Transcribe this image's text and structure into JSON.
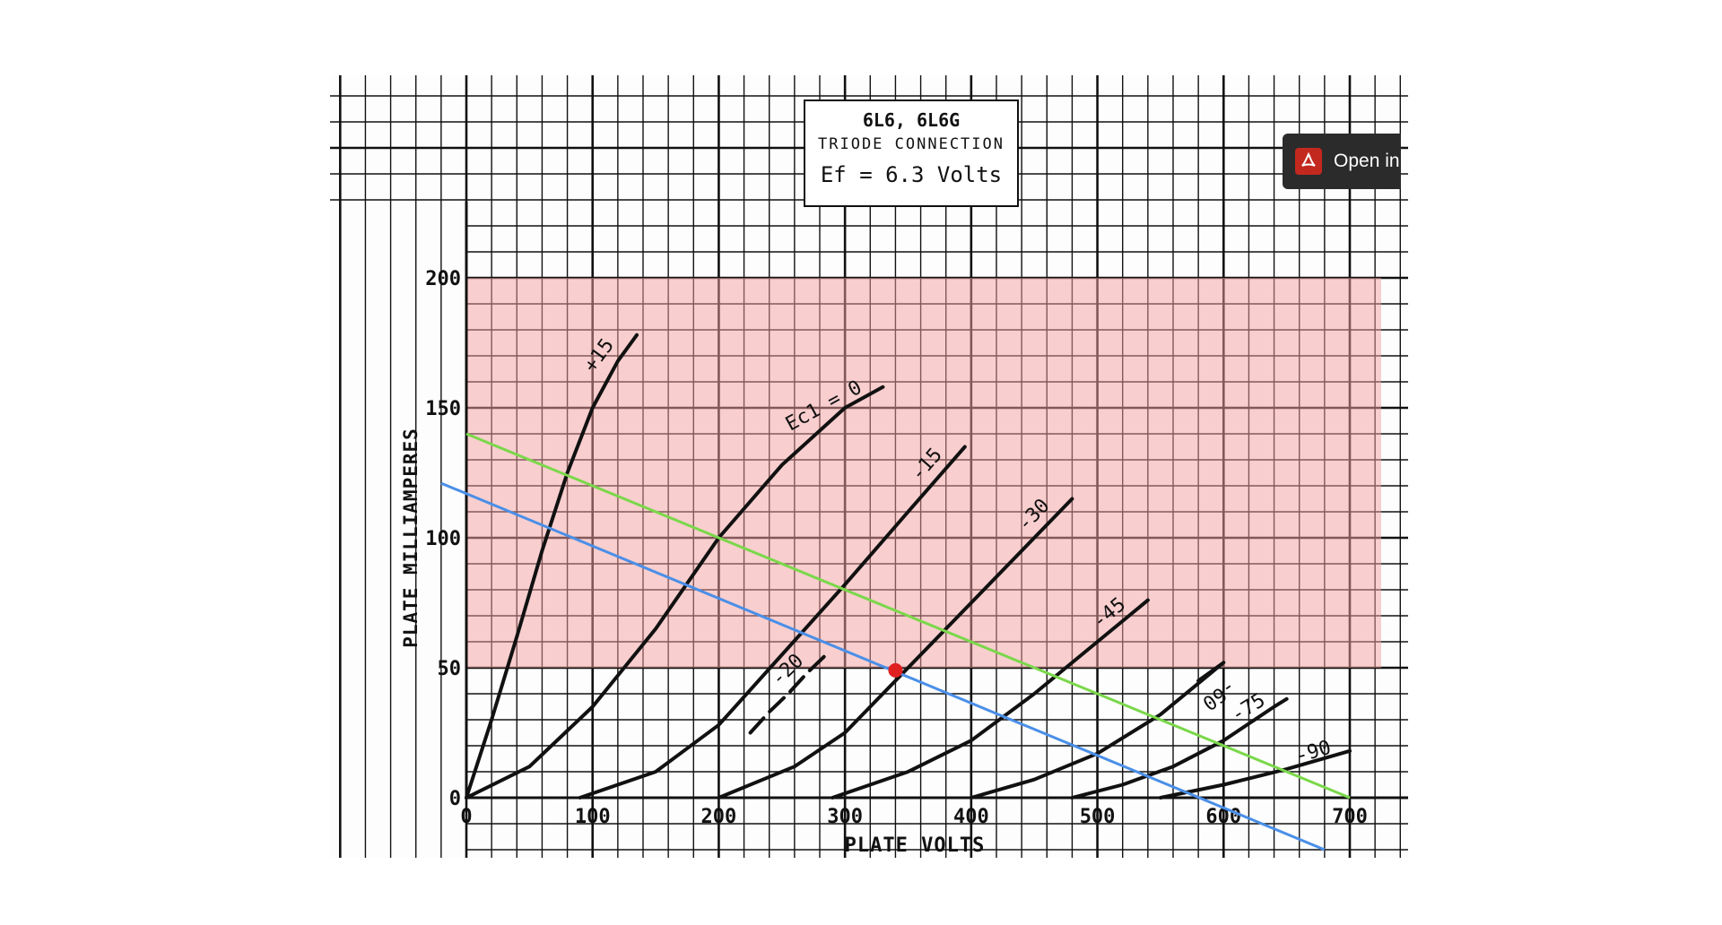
{
  "chart_data": {
    "type": "line",
    "title": "6L6, 6L6G",
    "subtitle": "TRIODE CONNECTION",
    "condition": "Ef = 6.3 Volts",
    "xlabel": "PLATE VOLTS",
    "ylabel": "PLATE MILLIAMPERES",
    "xlim": [
      0,
      700
    ],
    "ylim": [
      0,
      200
    ],
    "x_ticks": [
      "0",
      "100",
      "200",
      "300",
      "400",
      "500",
      "600",
      "700"
    ],
    "y_ticks": [
      "0",
      "50",
      "100",
      "150",
      "200"
    ],
    "grid": true,
    "curve_label_prefix": "Ec1 = ",
    "series": [
      {
        "name": "+15",
        "x": [
          0,
          20,
          40,
          60,
          80,
          100,
          120,
          135
        ],
        "y": [
          0,
          30,
          62,
          95,
          125,
          150,
          168,
          178
        ]
      },
      {
        "name": "0",
        "x": [
          0,
          50,
          100,
          150,
          200,
          250,
          300,
          330
        ],
        "y": [
          0,
          12,
          35,
          65,
          100,
          128,
          150,
          158
        ]
      },
      {
        "name": "-15",
        "x": [
          90,
          150,
          200,
          250,
          300,
          350,
          395
        ],
        "y": [
          0,
          10,
          28,
          55,
          82,
          110,
          135
        ]
      },
      {
        "name": "-20",
        "x": [
          225,
          240,
          255,
          270,
          285
        ],
        "y": [
          25,
          33,
          40,
          48,
          55
        ]
      },
      {
        "name": "-30",
        "x": [
          200,
          260,
          300,
          350,
          400,
          450,
          480
        ],
        "y": [
          0,
          12,
          25,
          50,
          75,
          100,
          115
        ]
      },
      {
        "name": "-45",
        "x": [
          290,
          350,
          400,
          450,
          500,
          540
        ],
        "y": [
          0,
          10,
          22,
          40,
          60,
          76
        ]
      },
      {
        "name": "-60",
        "x": [
          400,
          450,
          500,
          550,
          600,
          580
        ],
        "y": [
          0,
          7,
          17,
          32,
          52,
          45
        ]
      },
      {
        "name": "-75",
        "x": [
          480,
          520,
          560,
          600,
          640,
          650
        ],
        "y": [
          0,
          5,
          12,
          22,
          35,
          38
        ]
      },
      {
        "name": "-90",
        "x": [
          550,
          600,
          650,
          700
        ],
        "y": [
          0,
          5,
          11,
          18
        ]
      }
    ],
    "load_lines": [
      {
        "color": "#7ad84a",
        "x": [
          0,
          700
        ],
        "y": [
          140,
          0
        ]
      },
      {
        "color": "#4a8fe8",
        "x": [
          -20,
          680
        ],
        "y": [
          121,
          -20
        ]
      }
    ],
    "operating_point": {
      "x": 340,
      "y": 49,
      "color": "#e02020"
    },
    "shaded_region": {
      "x": [
        0,
        700
      ],
      "y": [
        50,
        200
      ],
      "color": "#f5a0a0"
    }
  },
  "button": {
    "label": "Open in Acrobat",
    "icon": "acrobat-icon"
  }
}
